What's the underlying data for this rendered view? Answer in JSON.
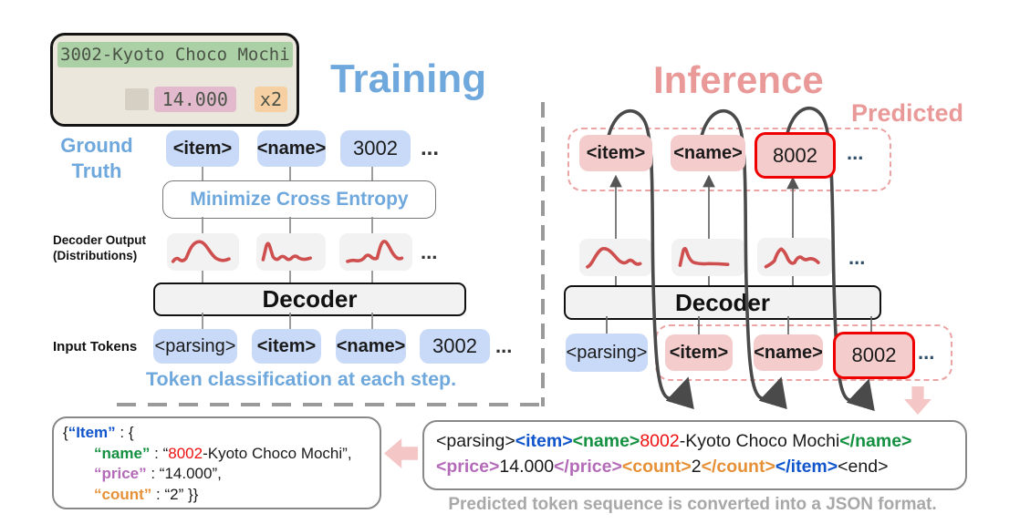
{
  "colors": {
    "blue": "#1155cc",
    "green": "#149140",
    "red": "#ee1111",
    "black": "#1a1a1a",
    "purple": "#b36bb8",
    "orange": "#e69138",
    "lightblue": "#6fa8dc",
    "salmon": "#ea9999",
    "gray_caption": "#a8a8a8",
    "box_blue": "#c9daf8",
    "box_pink": "#f4cccc",
    "box_gray": "#f2f2f2",
    "curve": "#cf4f4f",
    "border_red": "#ee0000",
    "dash_pink": "#eba3a3",
    "arrow_pink": "#f5c6c6",
    "receipt_bg": "#ece7dc",
    "receipt_green": "#abd0a5",
    "receipt_pink": "#e3bacd",
    "receipt_orange": "#f6d0a2",
    "receipt_text": "#4b5347"
  },
  "titles": {
    "training": "Training",
    "inference": "Inference",
    "predicted": "Predicted"
  },
  "receipt": {
    "line1": "3002-Kyoto Choco Mochi",
    "price": "14.000",
    "qty": "x2"
  },
  "ellipsis": "...",
  "left": {
    "ground_truth_line1": "Ground",
    "ground_truth_line2": "Truth",
    "gt_tokens": [
      {
        "text": "<item>"
      },
      {
        "text": "<name>"
      },
      {
        "text": "3002"
      }
    ],
    "minimize_label": "Minimize Cross Entropy",
    "decoder_output_line1": "Decoder Output",
    "decoder_output_line2": "(Distributions)",
    "decoder_label": "Decoder",
    "input_tokens_label": "Input Tokens",
    "input_tokens": [
      {
        "text": "<parsing>"
      },
      {
        "text": "<item>"
      },
      {
        "text": "<name>"
      },
      {
        "text": "3002"
      }
    ],
    "caption": "Token classification at each step."
  },
  "right": {
    "output_tokens": [
      {
        "text": "<item>"
      },
      {
        "text": "<name>"
      },
      {
        "text": "8002"
      }
    ],
    "decoder_label": "Decoder",
    "input_tokens": [
      {
        "text": "<parsing>"
      },
      {
        "text": "<item>"
      },
      {
        "text": "<name>"
      },
      {
        "text": "8002"
      }
    ]
  },
  "bottom": {
    "json_lines": {
      "l1": [
        {
          "t": "{"
        },
        {
          "t": "“Item”",
          "c": "blue",
          "b": true
        },
        {
          "t": " : {"
        }
      ],
      "l2": [
        {
          "t": "“name”",
          "c": "green",
          "b": true
        },
        {
          "t": " : “"
        },
        {
          "t": "8002",
          "c": "red"
        },
        {
          "t": "-Kyoto Choco Mochi”,"
        }
      ],
      "l3": [
        {
          "t": "“price”",
          "c": "purple",
          "b": true
        },
        {
          "t": " : “14.000”,"
        }
      ],
      "l4": [
        {
          "t": "“count”",
          "c": "orange",
          "b": true
        },
        {
          "t": " : “2” }}"
        }
      ]
    },
    "seq_lines": {
      "l1": [
        {
          "t": "<parsing>"
        },
        {
          "t": "<item>",
          "c": "blue",
          "b": true
        },
        {
          "t": "<name>",
          "c": "green",
          "b": true
        },
        {
          "t": "8002",
          "c": "red"
        },
        {
          "t": "-Kyoto Choco Mochi"
        },
        {
          "t": "</name>",
          "c": "green",
          "b": true
        }
      ],
      "l2": [
        {
          "t": "<price>",
          "c": "purple",
          "b": true
        },
        {
          "t": "14.000"
        },
        {
          "t": "</price>",
          "c": "purple",
          "b": true
        },
        {
          "t": "<count>",
          "c": "orange",
          "b": true
        },
        {
          "t": "2"
        },
        {
          "t": "</count>",
          "c": "orange",
          "b": true
        },
        {
          "t": "</item>",
          "c": "blue",
          "b": true
        },
        {
          "t": "<end>"
        }
      ]
    },
    "caption": "Predicted token sequence is converted into a JSON format."
  }
}
